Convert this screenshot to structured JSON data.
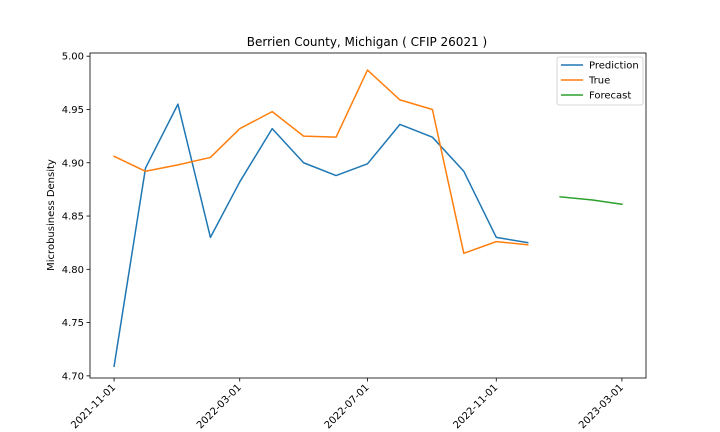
{
  "chart_data": {
    "type": "line",
    "title": "Berrien County, Michigan ( CFIP 26021 )",
    "xlabel": "",
    "ylabel": "Microbusiness Density",
    "ylim": [
      4.698,
      5.003
    ],
    "x_range": [
      "2021-10-09",
      "2023-03-24"
    ],
    "yticks": [
      4.7,
      4.75,
      4.8,
      4.85,
      4.9,
      4.95,
      5.0
    ],
    "ytick_labels": [
      "4.70",
      "4.75",
      "4.80",
      "4.85",
      "4.90",
      "4.95",
      "5.00"
    ],
    "xticks": [
      "2021-11-01",
      "2022-03-01",
      "2022-07-01",
      "2022-11-01",
      "2023-03-01"
    ],
    "grid": false,
    "legend_position": "top-right",
    "series": [
      {
        "name": "Prediction",
        "color": "#1f77b4",
        "x": [
          "2021-11-01",
          "2021-12-01",
          "2022-01-01",
          "2022-02-01",
          "2022-03-01",
          "2022-04-01",
          "2022-05-01",
          "2022-06-01",
          "2022-07-01",
          "2022-08-01",
          "2022-09-01",
          "2022-10-01",
          "2022-11-01",
          "2022-12-01"
        ],
        "values": [
          4.709,
          4.895,
          4.955,
          4.83,
          4.882,
          4.932,
          4.9,
          4.888,
          4.899,
          4.936,
          4.924,
          4.892,
          4.83,
          4.825
        ]
      },
      {
        "name": "True",
        "color": "#ff7f0e",
        "x": [
          "2021-11-01",
          "2021-12-01",
          "2022-01-01",
          "2022-02-01",
          "2022-03-01",
          "2022-04-01",
          "2022-05-01",
          "2022-06-01",
          "2022-07-01",
          "2022-08-01",
          "2022-09-01",
          "2022-10-01",
          "2022-11-01",
          "2022-12-01"
        ],
        "values": [
          4.906,
          4.892,
          4.898,
          4.905,
          4.932,
          4.948,
          4.925,
          4.924,
          4.987,
          4.959,
          4.95,
          4.815,
          4.826,
          4.823
        ]
      },
      {
        "name": "Forecast",
        "color": "#2ca02c",
        "x": [
          "2023-01-01",
          "2023-02-01",
          "2023-03-01"
        ],
        "values": [
          4.868,
          4.865,
          4.861
        ]
      }
    ]
  }
}
